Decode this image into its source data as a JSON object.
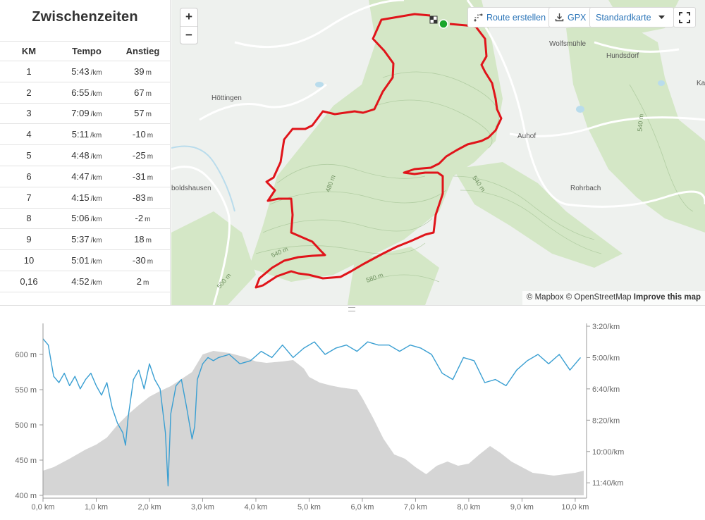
{
  "splits": {
    "title": "Zwischenzeiten",
    "headers": {
      "km": "KM",
      "tempo": "Tempo",
      "climb": "Anstieg"
    },
    "pace_unit": "/km",
    "climb_unit": "m",
    "rows": [
      {
        "km": "1",
        "pace": "5:43",
        "climb": "39"
      },
      {
        "km": "2",
        "pace": "6:55",
        "climb": "67"
      },
      {
        "km": "3",
        "pace": "7:09",
        "climb": "57"
      },
      {
        "km": "4",
        "pace": "5:11",
        "climb": "-10"
      },
      {
        "km": "5",
        "pace": "4:48",
        "climb": "-25"
      },
      {
        "km": "6",
        "pace": "4:47",
        "climb": "-31"
      },
      {
        "km": "7",
        "pace": "4:15",
        "climb": "-83"
      },
      {
        "km": "8",
        "pace": "5:06",
        "climb": "-2"
      },
      {
        "km": "9",
        "pace": "5:37",
        "climb": "18"
      },
      {
        "km": "10",
        "pace": "5:01",
        "climb": "-30"
      },
      {
        "km": "0,16",
        "pace": "4:52",
        "climb": "2"
      }
    ]
  },
  "map": {
    "zoom_in": "+",
    "zoom_out": "−",
    "buttons": {
      "route": "Route erstellen",
      "gpx": "GPX",
      "maptype": "Standardkarte"
    },
    "places": {
      "wolfsmuehle": "Wolfsmühle",
      "hundsdorf": "Hundsdorf",
      "ka": "Ka",
      "hoettingen": "Höttingen",
      "auhof": "Auhof",
      "boldshausen": "boldshausen",
      "rohrbach": "Rohrbach"
    },
    "contours": {
      "c480": "480 m",
      "c540a": "540 m",
      "c540b": "540 m",
      "c540c": "540 m",
      "c500": "500 m",
      "c580": "580 m"
    },
    "attribution": {
      "mapbox": "© Mapbox",
      "osm": "© OpenStreetMap",
      "improve": "Improve this map"
    },
    "colors": {
      "route": "#e0141a",
      "start": "#1aa62c",
      "forest": "#d2e6c4",
      "water": "#b8dcea",
      "road": "#ffffff"
    }
  },
  "chart_data": {
    "type": "area",
    "xlabel": "",
    "ylabel": "",
    "x_ticks": [
      "0,0 km",
      "1,0 km",
      "2,0 km",
      "3,0 km",
      "4,0 km",
      "5,0 km",
      "6,0 km",
      "7,0 km",
      "8,0 km",
      "9,0 km",
      "10,0 km"
    ],
    "y_left_ticks": [
      "400 m",
      "450 m",
      "500 m",
      "550 m",
      "600 m"
    ],
    "y_right_ticks": [
      "3:20/km",
      "5:00/km",
      "6:40/km",
      "8:20/km",
      "10:00/km",
      "11:40/km"
    ],
    "xlim": [
      0,
      10.16
    ],
    "ylim_left": [
      400,
      640
    ],
    "series": [
      {
        "kind": "elevation",
        "color": "#d5d5d5",
        "x": [
          0,
          0.2,
          0.5,
          0.8,
          1.0,
          1.2,
          1.4,
          1.6,
          1.8,
          2.0,
          2.2,
          2.4,
          2.6,
          2.8,
          3.0,
          3.2,
          3.5,
          3.8,
          4.0,
          4.2,
          4.5,
          4.7,
          4.9,
          5.0,
          5.2,
          5.4,
          5.6,
          5.9,
          6.0,
          6.2,
          6.4,
          6.6,
          6.8,
          7.0,
          7.2,
          7.4,
          7.6,
          7.8,
          8.0,
          8.2,
          8.4,
          8.6,
          8.8,
          9.0,
          9.2,
          9.4,
          9.6,
          9.8,
          10.0,
          10.16
        ],
        "y": [
          435,
          440,
          452,
          465,
          472,
          482,
          500,
          515,
          528,
          540,
          548,
          555,
          565,
          575,
          600,
          605,
          602,
          596,
          590,
          588,
          590,
          592,
          580,
          568,
          560,
          556,
          553,
          550,
          538,
          510,
          480,
          458,
          452,
          440,
          430,
          442,
          448,
          442,
          445,
          458,
          470,
          460,
          448,
          440,
          432,
          430,
          428,
          430,
          432,
          435
        ]
      },
      {
        "kind": "pace",
        "color": "#3a9fd2",
        "x": [
          0,
          0.1,
          0.2,
          0.3,
          0.4,
          0.5,
          0.6,
          0.7,
          0.8,
          0.9,
          1.0,
          1.1,
          1.2,
          1.3,
          1.4,
          1.5,
          1.55,
          1.6,
          1.7,
          1.8,
          1.9,
          2.0,
          2.1,
          2.2,
          2.3,
          2.35,
          2.4,
          2.5,
          2.6,
          2.7,
          2.8,
          2.85,
          2.9,
          3.0,
          3.1,
          3.2,
          3.3,
          3.5,
          3.7,
          3.9,
          4.1,
          4.3,
          4.5,
          4.7,
          4.9,
          5.1,
          5.3,
          5.5,
          5.7,
          5.9,
          6.1,
          6.3,
          6.5,
          6.7,
          6.9,
          7.1,
          7.3,
          7.5,
          7.7,
          7.9,
          8.1,
          8.3,
          8.5,
          8.7,
          8.9,
          9.1,
          9.3,
          9.5,
          9.7,
          9.9,
          10.1
        ],
        "y_pace": [
          "4:00",
          "4:20",
          "6:00",
          "6:20",
          "5:50",
          "6:30",
          "6:00",
          "6:40",
          "6:10",
          "5:50",
          "6:30",
          "7:00",
          "6:20",
          "7:40",
          "8:30",
          "9:00",
          "9:40",
          "8:10",
          "6:10",
          "5:40",
          "6:40",
          "5:20",
          "6:10",
          "6:40",
          "9:00",
          "11:50",
          "8:00",
          "6:30",
          "6:10",
          "7:40",
          "9:20",
          "8:40",
          "6:10",
          "5:20",
          "5:00",
          "5:10",
          "5:00",
          "4:50",
          "5:20",
          "5:10",
          "4:40",
          "5:00",
          "4:20",
          "5:00",
          "4:30",
          "4:10",
          "4:50",
          "4:30",
          "4:20",
          "4:40",
          "4:10",
          "4:20",
          "4:20",
          "4:40",
          "4:20",
          "4:30",
          "4:50",
          "5:50",
          "6:10",
          "5:00",
          "5:10",
          "6:20",
          "6:10",
          "6:30",
          "5:40",
          "5:10",
          "4:50",
          "5:20",
          "4:50",
          "5:40",
          "5:00"
        ]
      }
    ]
  }
}
